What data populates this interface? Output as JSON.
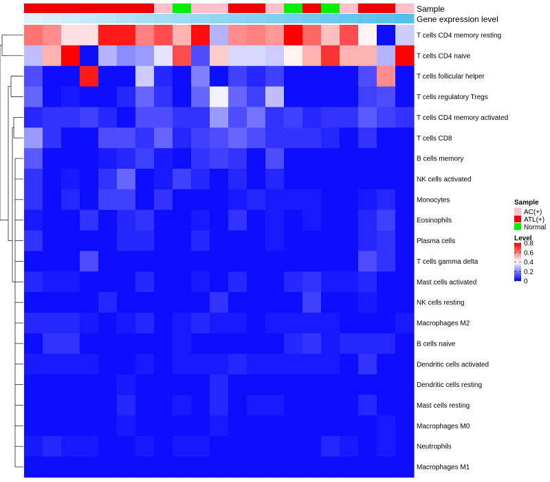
{
  "chart_data": {
    "type": "heatmap",
    "annotation_labels": {
      "sample": "Sample",
      "gene_expression": "Gene expression level"
    },
    "sample_groups": [
      "ATL(+)",
      "ATL(+)",
      "ATL(+)",
      "ATL(+)",
      "ATL(+)",
      "ATL(+)",
      "ATL(+)",
      "AC(+)",
      "Normal",
      "AC(+)",
      "AC(+)",
      "ATL(+)",
      "ATL(+)",
      "AC(+)",
      "Normal",
      "ATL(+)",
      "Normal",
      "AC(+)",
      "ATL(+)",
      "ATL(+)",
      "AC(+)"
    ],
    "gene_expression_levels": [
      0.08,
      0.12,
      0.18,
      0.24,
      0.3,
      0.36,
      0.42,
      0.46,
      0.5,
      0.54,
      0.58,
      0.62,
      0.66,
      0.7,
      0.74,
      0.78,
      0.82,
      0.86,
      0.9,
      0.94,
      0.98
    ],
    "rows": [
      "T cells CD4 memory resting",
      "T cells CD4 naive",
      "T cells follicular helper",
      "T cells regulatory  Tregs",
      "T cells CD4 memory activated",
      "T cells CD8",
      "B cells memory",
      "NK cells activated",
      "Monocytes",
      "Eosinophils",
      "Plasma cells",
      "T cells gamma delta",
      "Mast cells activated",
      "NK cells resting",
      "Macrophages M2",
      "B cells naive",
      "Dendritic cells activated",
      "Dendritic cells resting",
      "Mast cells resting",
      "Macrophages M0",
      "Neutrophils",
      "Macrophages M1"
    ],
    "values": [
      [
        0.62,
        0.58,
        0.45,
        0.45,
        0.76,
        0.76,
        0.6,
        0.68,
        0.52,
        0.78,
        0.28,
        0.58,
        0.6,
        0.56,
        0.8,
        0.64,
        0.5,
        0.68,
        0.42,
        0.02,
        0.32
      ],
      [
        0.3,
        0.52,
        0.8,
        0.02,
        0.28,
        0.22,
        0.24,
        0.36,
        0.68,
        0.12,
        0.48,
        0.34,
        0.34,
        0.32,
        0.42,
        0.52,
        0.72,
        0.52,
        0.52,
        0.28,
        0.8
      ],
      [
        0.12,
        0.02,
        0.02,
        0.76,
        0.02,
        0.02,
        0.32,
        0.06,
        0.02,
        0.2,
        0.02,
        0.1,
        0.06,
        0.1,
        0.02,
        0.02,
        0.02,
        0.02,
        0.12,
        0.58,
        0.02
      ],
      [
        0.16,
        0.02,
        0.04,
        0.02,
        0.02,
        0.06,
        0.16,
        0.08,
        0.02,
        0.16,
        0.38,
        0.16,
        0.1,
        0.3,
        0.02,
        0.02,
        0.02,
        0.02,
        0.1,
        0.12,
        0.02
      ],
      [
        0.06,
        0.08,
        0.08,
        0.1,
        0.06,
        0.02,
        0.12,
        0.12,
        0.08,
        0.08,
        0.24,
        0.12,
        0.18,
        0.08,
        0.1,
        0.06,
        0.08,
        0.08,
        0.14,
        0.1,
        0.08
      ],
      [
        0.24,
        0.08,
        0.02,
        0.02,
        0.12,
        0.12,
        0.08,
        0.16,
        0.06,
        0.1,
        0.12,
        0.16,
        0.12,
        0.08,
        0.08,
        0.08,
        0.06,
        0.02,
        0.08,
        0.02,
        0.02
      ],
      [
        0.14,
        0.02,
        0.02,
        0.02,
        0.04,
        0.06,
        0.1,
        0.04,
        0.02,
        0.08,
        0.1,
        0.08,
        0.02,
        0.12,
        0.02,
        0.02,
        0.02,
        0.02,
        0.02,
        0.02,
        0.02
      ],
      [
        0.08,
        0.02,
        0.04,
        0.02,
        0.08,
        0.16,
        0.02,
        0.04,
        0.1,
        0.06,
        0.02,
        0.06,
        0.02,
        0.06,
        0.02,
        0.02,
        0.02,
        0.02,
        0.02,
        0.02,
        0.02
      ],
      [
        0.08,
        0.02,
        0.06,
        0.02,
        0.1,
        0.1,
        0.02,
        0.08,
        0.02,
        0.02,
        0.02,
        0.04,
        0.06,
        0.04,
        0.04,
        0.04,
        0.02,
        0.02,
        0.04,
        0.06,
        0.02
      ],
      [
        0.04,
        0.02,
        0.02,
        0.08,
        0.02,
        0.06,
        0.08,
        0.02,
        0.02,
        0.04,
        0.02,
        0.08,
        0.02,
        0.04,
        0.02,
        0.04,
        0.02,
        0.02,
        0.06,
        0.1,
        0.02
      ],
      [
        0.08,
        0.02,
        0.02,
        0.02,
        0.02,
        0.06,
        0.06,
        0.02,
        0.02,
        0.06,
        0.02,
        0.02,
        0.02,
        0.04,
        0.02,
        0.02,
        0.02,
        0.02,
        0.06,
        0.08,
        0.02
      ],
      [
        0.02,
        0.02,
        0.02,
        0.12,
        0.02,
        0.02,
        0.02,
        0.02,
        0.02,
        0.02,
        0.02,
        0.02,
        0.02,
        0.02,
        0.02,
        0.02,
        0.02,
        0.02,
        0.12,
        0.08,
        0.02
      ],
      [
        0.06,
        0.04,
        0.04,
        0.02,
        0.02,
        0.02,
        0.06,
        0.02,
        0.02,
        0.04,
        0.02,
        0.06,
        0.02,
        0.02,
        0.06,
        0.08,
        0.04,
        0.04,
        0.06,
        0.02,
        0.02
      ],
      [
        0.02,
        0.02,
        0.02,
        0.02,
        0.06,
        0.02,
        0.02,
        0.02,
        0.02,
        0.02,
        0.08,
        0.02,
        0.02,
        0.02,
        0.02,
        0.1,
        0.02,
        0.02,
        0.04,
        0.02,
        0.02
      ],
      [
        0.06,
        0.06,
        0.06,
        0.04,
        0.02,
        0.04,
        0.06,
        0.02,
        0.04,
        0.06,
        0.04,
        0.04,
        0.02,
        0.04,
        0.04,
        0.04,
        0.04,
        0.02,
        0.02,
        0.02,
        0.04
      ],
      [
        0.02,
        0.08,
        0.08,
        0.02,
        0.02,
        0.02,
        0.02,
        0.02,
        0.04,
        0.02,
        0.02,
        0.02,
        0.02,
        0.02,
        0.06,
        0.08,
        0.04,
        0.06,
        0.06,
        0.06,
        0.02
      ],
      [
        0.04,
        0.04,
        0.04,
        0.04,
        0.02,
        0.02,
        0.04,
        0.02,
        0.04,
        0.04,
        0.04,
        0.06,
        0.04,
        0.04,
        0.04,
        0.04,
        0.04,
        0.02,
        0.08,
        0.02,
        0.02
      ],
      [
        0.02,
        0.02,
        0.02,
        0.02,
        0.02,
        0.04,
        0.02,
        0.02,
        0.02,
        0.02,
        0.06,
        0.02,
        0.02,
        0.02,
        0.02,
        0.02,
        0.02,
        0.02,
        0.02,
        0.02,
        0.02
      ],
      [
        0.02,
        0.02,
        0.02,
        0.02,
        0.02,
        0.06,
        0.02,
        0.02,
        0.04,
        0.02,
        0.06,
        0.02,
        0.04,
        0.04,
        0.02,
        0.02,
        0.02,
        0.02,
        0.06,
        0.02,
        0.02
      ],
      [
        0.02,
        0.02,
        0.02,
        0.02,
        0.02,
        0.04,
        0.02,
        0.02,
        0.02,
        0.02,
        0.04,
        0.02,
        0.02,
        0.02,
        0.02,
        0.02,
        0.02,
        0.02,
        0.02,
        0.04,
        0.02
      ],
      [
        0.04,
        0.06,
        0.04,
        0.04,
        0.02,
        0.02,
        0.04,
        0.02,
        0.04,
        0.04,
        0.02,
        0.02,
        0.02,
        0.02,
        0.02,
        0.02,
        0.06,
        0.04,
        0.02,
        0.04,
        0.02
      ],
      [
        0.02,
        0.02,
        0.02,
        0.02,
        0.02,
        0.02,
        0.02,
        0.02,
        0.02,
        0.02,
        0.02,
        0.02,
        0.02,
        0.02,
        0.02,
        0.02,
        0.02,
        0.02,
        0.02,
        0.02,
        0.02
      ]
    ],
    "color_scale": {
      "low": "#0000ff",
      "mid": "#ffffff",
      "high": "#ff0000",
      "min": 0,
      "mid_value": 0.4,
      "max": 0.8
    },
    "legend": {
      "sample_title": "Sample",
      "sample_entries": [
        {
          "label": "AC(+)",
          "color": "#ffc0cb"
        },
        {
          "label": "ATL(+)",
          "color": "#ee0000"
        },
        {
          "label": "Normal",
          "color": "#00ee00"
        }
      ],
      "level_title": "Level",
      "level_ticks": [
        "0.8",
        "0.6",
        "0.4",
        "0.2",
        "0"
      ],
      "level_tick_values": [
        0.8,
        0.6,
        0.4,
        0.2,
        0
      ]
    },
    "gene_scale": {
      "low": "#eaf6fc",
      "high": "#4fbfea"
    }
  }
}
